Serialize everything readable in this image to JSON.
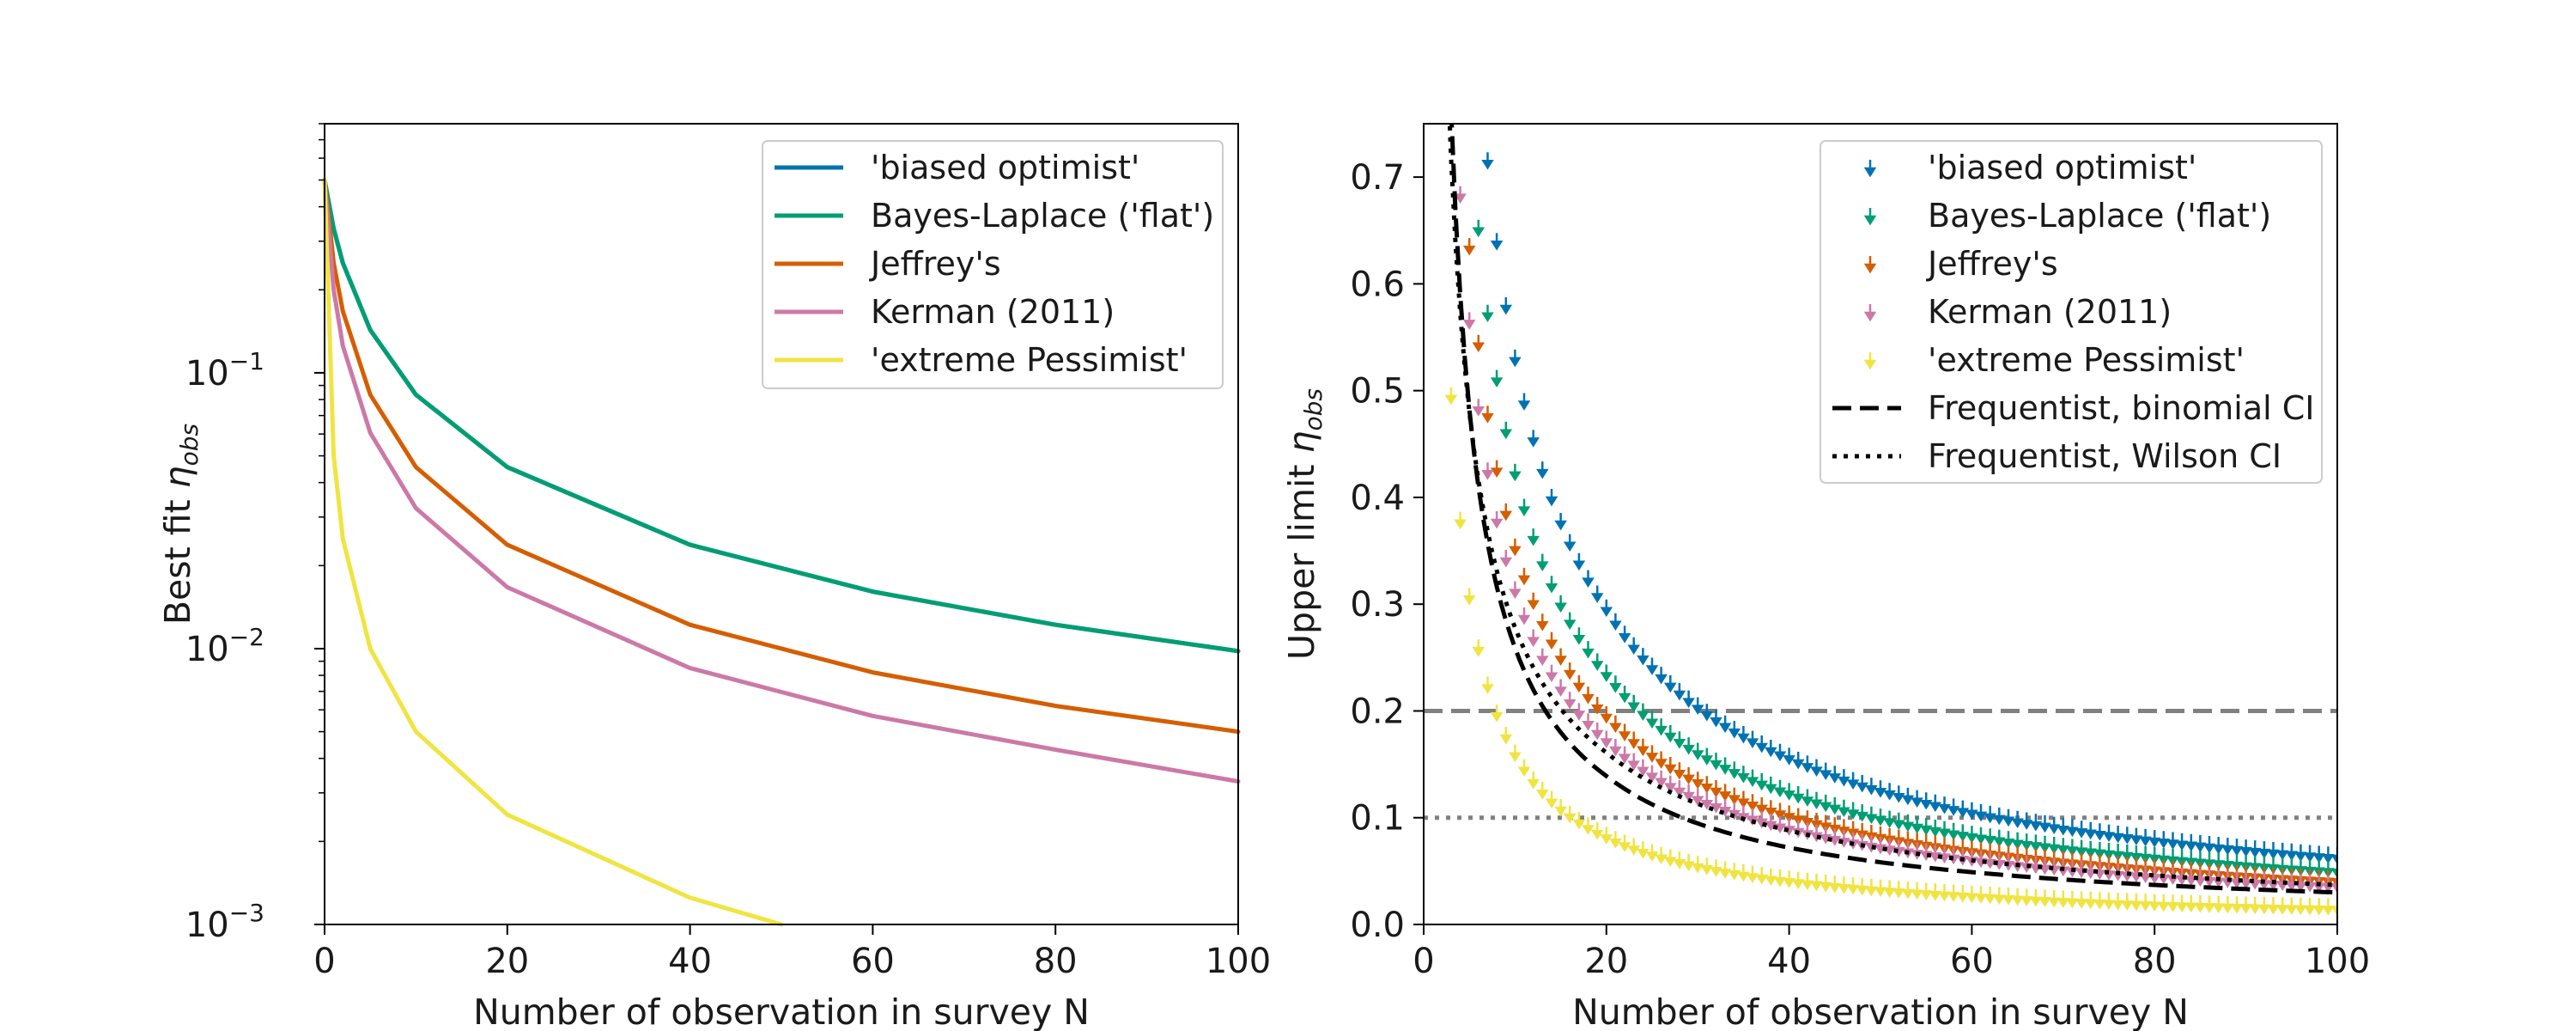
{
  "chart_data": [
    {
      "type": "line",
      "xlabel": "Number of observation in survey N",
      "ylabel_main": "Best fit ",
      "ylabel_sym": "η",
      "ylabel_sub": "obs",
      "xlim": [
        0,
        100
      ],
      "ylim": [
        0.001,
        0.8
      ],
      "yscale": "log",
      "xticks": [
        "0",
        "20",
        "40",
        "60",
        "80",
        "100"
      ],
      "yticks": [
        {
          "value": 0.1,
          "base": "10",
          "exp": "−1"
        },
        {
          "value": 0.01,
          "base": "10",
          "exp": "−2"
        },
        {
          "value": 0.001,
          "base": "10",
          "exp": "−3"
        }
      ],
      "grid": false,
      "legend_position": "top-right",
      "series": [
        {
          "name": "'biased optimist'",
          "color": "#0072b2",
          "values_at_n": {
            "0": 0.5,
            "1": 0.333,
            "2": 0.25,
            "5": 0.143,
            "10": 0.0833,
            "20": 0.0455,
            "40": 0.0238,
            "60": 0.0161,
            "80": 0.0122,
            "100": 0.0098
          }
        },
        {
          "name": "Bayes-Laplace ('flat')",
          "color": "#009e73",
          "values_at_n": {
            "0": 0.5,
            "1": 0.333,
            "2": 0.25,
            "5": 0.143,
            "10": 0.0833,
            "20": 0.0455,
            "40": 0.0238,
            "60": 0.0161,
            "80": 0.0122,
            "100": 0.0098
          }
        },
        {
          "name": "Jeffrey's",
          "color": "#d55e00",
          "values_at_n": {
            "0": 0.5,
            "1": 0.25,
            "2": 0.167,
            "5": 0.0833,
            "10": 0.0455,
            "20": 0.0238,
            "40": 0.0122,
            "60": 0.0082,
            "80": 0.0062,
            "100": 0.005
          }
        },
        {
          "name": "Kerman (2011)",
          "color": "#cc79a7",
          "values_at_n": {
            "0": 0.5,
            "1": 0.2,
            "2": 0.125,
            "5": 0.0606,
            "10": 0.0323,
            "20": 0.0167,
            "40": 0.0085,
            "60": 0.0057,
            "80": 0.0043,
            "100": 0.0033
          }
        },
        {
          "name": "'extreme Pessimist'",
          "color": "#f0e442",
          "values_at_n": {
            "0": 0.5,
            "1": 0.05,
            "2": 0.025,
            "5": 0.01,
            "10": 0.005,
            "20": 0.0025,
            "40": 0.00125,
            "50": 0.001
          }
        }
      ]
    },
    {
      "type": "scatter",
      "xlabel": "Number of observation in survey N",
      "ylabel_main": "Upper limit ",
      "ylabel_sym": "η",
      "ylabel_sub": "obs",
      "xlim": [
        0,
        100
      ],
      "ylim": [
        0,
        0.75
      ],
      "xticks": [
        "0",
        "20",
        "40",
        "60",
        "80",
        "100"
      ],
      "yticks": [
        "0.0",
        "0.1",
        "0.2",
        "0.3",
        "0.4",
        "0.5",
        "0.6",
        "0.7"
      ],
      "grid": false,
      "legend_position": "top-right",
      "marker": "upper-limit arrow",
      "series": [
        {
          "name": "'biased optimist'",
          "color": "#0072b2",
          "values_at_n": {
            "10": 0.532,
            "20": 0.298,
            "40": 0.159,
            "60": 0.108,
            "80": 0.082,
            "100": 0.066
          }
        },
        {
          "name": "Bayes-Laplace ('flat')",
          "color": "#009e73",
          "values_at_n": {
            "10": 0.425,
            "20": 0.237,
            "40": 0.126,
            "60": 0.086,
            "80": 0.066,
            "100": 0.053
          }
        },
        {
          "name": "Jeffrey's",
          "color": "#d55e00",
          "values_at_n": {
            "10": 0.355,
            "20": 0.198,
            "40": 0.105,
            "60": 0.072,
            "80": 0.055,
            "100": 0.044
          }
        },
        {
          "name": "Kerman (2011)",
          "color": "#cc79a7",
          "values_at_n": {
            "10": 0.315,
            "20": 0.175,
            "40": 0.093,
            "60": 0.064,
            "80": 0.048,
            "100": 0.039
          }
        },
        {
          "name": "'extreme Pessimist'",
          "color": "#f0e442",
          "values_at_n": {
            "10": 0.162,
            "20": 0.085,
            "40": 0.044,
            "60": 0.03,
            "80": 0.022,
            "100": 0.018
          }
        }
      ],
      "lines": [
        {
          "name": "Frequentist, binomial CI",
          "color": "#000000",
          "style": "dashed",
          "values_at_n": {
            "10": 0.259,
            "20": 0.139,
            "40": 0.072,
            "60": 0.049,
            "80": 0.037,
            "100": 0.03
          }
        },
        {
          "name": "Frequentist, Wilson CI",
          "color": "#000000",
          "style": "dotted",
          "values_at_n": {
            "10": 0.278,
            "20": 0.161,
            "40": 0.088,
            "60": 0.06,
            "80": 0.046,
            "100": 0.037
          }
        }
      ],
      "reference_lines": [
        {
          "y": 0.2,
          "color": "#808080",
          "style": "dashed"
        },
        {
          "y": 0.1,
          "color": "#808080",
          "style": "dotted"
        }
      ]
    }
  ]
}
